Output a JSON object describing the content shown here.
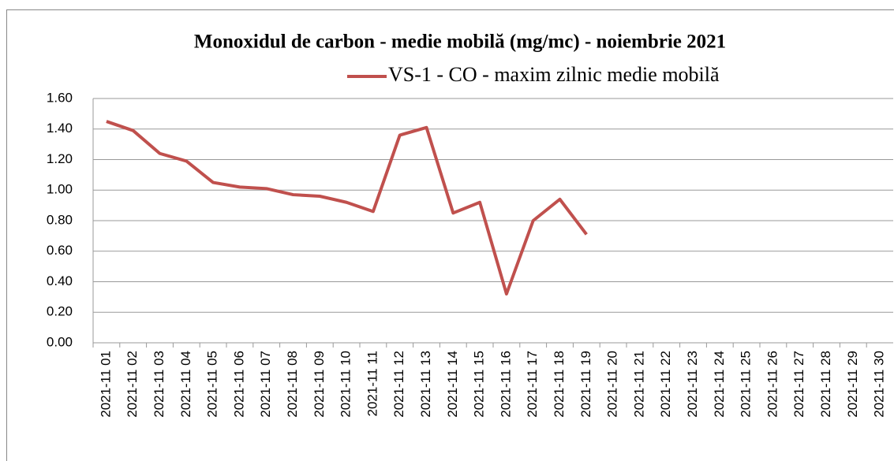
{
  "chart_data": {
    "type": "line",
    "title": "Monoxidul de carbon  - medie mobilă (mg/mc) - noiembrie 2021",
    "categories": [
      "2021-11 01",
      "2021-11 02",
      "2021-11 03",
      "2021-11 04",
      "2021-11 05",
      "2021-11 06",
      "2021-11 07",
      "2021-11 08",
      "2021-11 09",
      "2021-11 10",
      "2021-11 11",
      "2021-11 12",
      "2021-11 13",
      "2021-11 14",
      "2021-11 15",
      "2021-11 16",
      "2021-11 17",
      "2021-11 18",
      "2021-11 19",
      "2021-11 20",
      "2021-11 21",
      "2021-11 22",
      "2021-11 23",
      "2021-11 24",
      "2021-11 25",
      "2021-11 26",
      "2021-11 27",
      "2021-11 28",
      "2021-11 29",
      "2021-11 30"
    ],
    "series": [
      {
        "name": "VS-1 - CO - maxim zilnic medie mobilă",
        "color": "#c0504d",
        "values": [
          1.45,
          1.39,
          1.24,
          1.19,
          1.05,
          1.02,
          1.01,
          0.97,
          0.96,
          0.92,
          0.86,
          1.36,
          1.41,
          0.85,
          0.92,
          0.32,
          0.8,
          0.94,
          0.71,
          null,
          null,
          null,
          null,
          null,
          null,
          null,
          null,
          null,
          null,
          null
        ]
      }
    ],
    "ylim": [
      0,
      1.6
    ],
    "yticks": [
      {
        "value": 0,
        "label": "0.00"
      },
      {
        "value": 0.2,
        "label": "0.20"
      },
      {
        "value": 0.4,
        "label": "0.40"
      },
      {
        "value": 0.6,
        "label": "0.60"
      },
      {
        "value": 0.8,
        "label": "0.80"
      },
      {
        "value": 1,
        "label": "1.00"
      },
      {
        "value": 1.2,
        "label": "1.20"
      },
      {
        "value": 1.4,
        "label": "1.40"
      },
      {
        "value": 1.6,
        "label": "1.60"
      }
    ],
    "grid": true
  }
}
